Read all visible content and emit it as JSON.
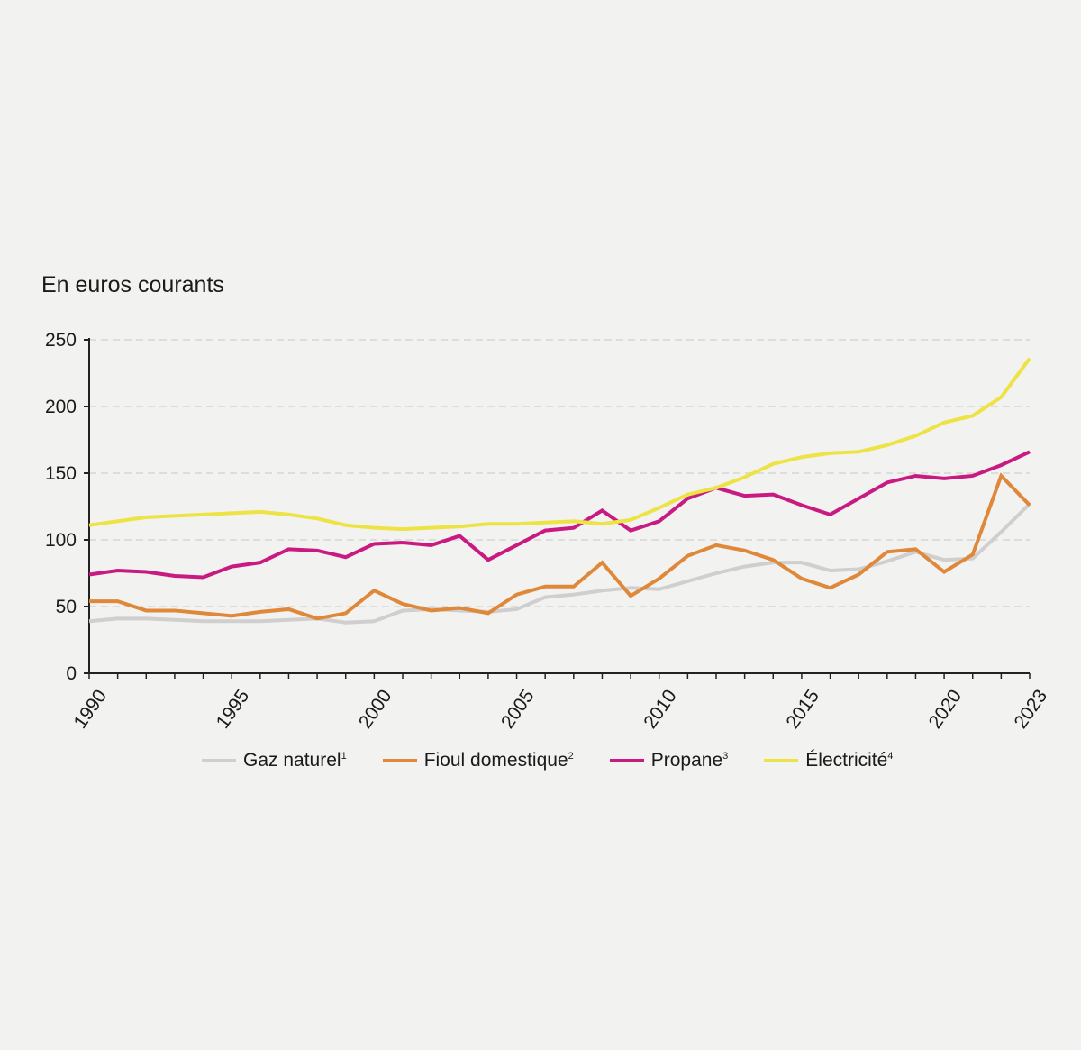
{
  "chart_data": {
    "type": "line",
    "title": "En euros courants",
    "xlabel": "",
    "ylabel": "",
    "ylim": [
      0,
      250
    ],
    "xlim": [
      1990,
      2023
    ],
    "yticks": [
      0,
      50,
      100,
      150,
      200,
      250
    ],
    "xticks": [
      1990,
      1995,
      2000,
      2005,
      2010,
      2015,
      2020,
      2023
    ],
    "grid": true,
    "legend_position": "bottom",
    "x": [
      1990,
      1991,
      1992,
      1993,
      1994,
      1995,
      1996,
      1997,
      1998,
      1999,
      2000,
      2001,
      2002,
      2003,
      2004,
      2005,
      2006,
      2007,
      2008,
      2009,
      2010,
      2011,
      2012,
      2013,
      2014,
      2015,
      2016,
      2017,
      2018,
      2019,
      2020,
      2021,
      2022,
      2023
    ],
    "series": [
      {
        "name": "Gaz naturel",
        "sup": "1",
        "color": "#cfcfcf",
        "values": [
          39,
          41,
          41,
          40,
          39,
          39,
          39,
          40,
          41,
          38,
          39,
          47,
          48,
          47,
          46,
          48,
          57,
          59,
          62,
          64,
          63,
          69,
          75,
          80,
          83,
          83,
          77,
          78,
          84,
          91,
          85,
          86,
          106,
          127
        ]
      },
      {
        "name": "Fioul domestique",
        "sup": "2",
        "color": "#e0883a",
        "values": [
          54,
          54,
          47,
          47,
          45,
          43,
          46,
          48,
          41,
          45,
          62,
          52,
          47,
          49,
          45,
          59,
          65,
          65,
          83,
          58,
          71,
          88,
          96,
          92,
          85,
          71,
          64,
          74,
          91,
          93,
          76,
          89,
          148,
          126
        ]
      },
      {
        "name": "Propane",
        "sup": "3",
        "color": "#c81a80",
        "values": [
          74,
          77,
          76,
          73,
          72,
          80,
          83,
          93,
          92,
          87,
          97,
          98,
          96,
          103,
          85,
          96,
          107,
          109,
          122,
          107,
          114,
          131,
          139,
          133,
          134,
          126,
          119,
          131,
          143,
          148,
          146,
          148,
          156,
          166
        ]
      },
      {
        "name": "Électricité",
        "sup": "4",
        "color": "#ede344",
        "values": [
          111,
          114,
          117,
          118,
          119,
          120,
          121,
          119,
          116,
          111,
          109,
          108,
          109,
          110,
          112,
          112,
          113,
          114,
          112,
          115,
          124,
          134,
          139,
          147,
          157,
          162,
          165,
          166,
          171,
          178,
          188,
          193,
          207,
          236
        ]
      }
    ]
  }
}
